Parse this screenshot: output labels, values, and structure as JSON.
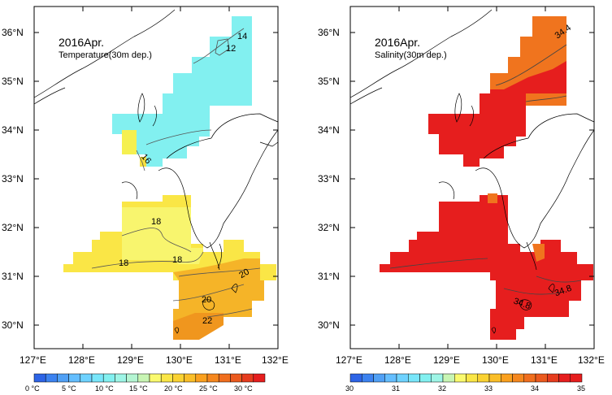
{
  "panels": [
    {
      "title": "2016Apr.",
      "subtitle": "Temperature(30m dep.)",
      "x_ticks": [
        "127°E",
        "128°E",
        "129°E",
        "130°E",
        "131°E",
        "132°E"
      ],
      "y_ticks": [
        "36°N",
        "35°N",
        "34°N",
        "33°N",
        "32°N",
        "31°N",
        "30°N"
      ],
      "contour_labels": [
        "12",
        "14",
        "16",
        "18",
        "18",
        "18",
        "20",
        "20",
        "22"
      ],
      "colorbar": {
        "labels": [
          "0 °C",
          "5 °C",
          "10 °C",
          "15 °C",
          "20 °C",
          "25 °C",
          "30 °C"
        ],
        "colors": [
          "#2d64e6",
          "#3c82f0",
          "#50a0f5",
          "#64beff",
          "#6ed2ff",
          "#78e6fa",
          "#82f0f0",
          "#9ef5e6",
          "#b4f5d2",
          "#c8f5b4",
          "#fafa6e",
          "#fae646",
          "#fad232",
          "#fabe28",
          "#faa01e",
          "#f5871e",
          "#f06e1e",
          "#eb5a1e",
          "#e63c1e",
          "#e61e1e"
        ]
      }
    },
    {
      "title": "2016Apr.",
      "subtitle": "Salinity(30m dep.)",
      "x_ticks": [
        "127°E",
        "128°E",
        "129°E",
        "130°E",
        "131°E",
        "132°E"
      ],
      "y_ticks": [
        "36°N",
        "35°N",
        "34°N",
        "33°N",
        "32°N",
        "31°N",
        "30°N"
      ],
      "contour_labels": [
        "34.4",
        "34.8",
        "34.8"
      ],
      "colorbar": {
        "labels": [
          "30",
          "31",
          "32",
          "33",
          "34",
          "35"
        ],
        "colors": [
          "#2d64e6",
          "#3c82f0",
          "#50a0f5",
          "#64beff",
          "#6ed2ff",
          "#78e6fa",
          "#82f0f0",
          "#9ef5e6",
          "#c8f5b4",
          "#fafa6e",
          "#fae646",
          "#fad232",
          "#fabe28",
          "#faa01e",
          "#f5871e",
          "#f06e1e",
          "#eb5a1e",
          "#e63c1e",
          "#e61e1e",
          "#e61e1e"
        ]
      }
    }
  ]
}
